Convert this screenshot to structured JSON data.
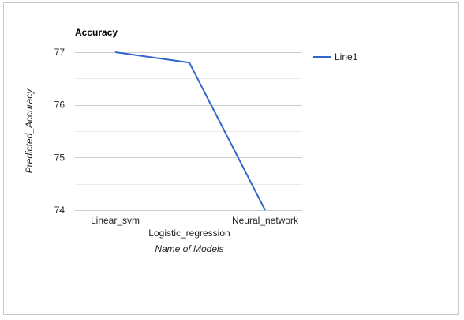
{
  "chart_data": {
    "type": "line",
    "title": "Accuracy",
    "xlabel": "Name of Models",
    "ylabel": "Predicted_Accuracy",
    "categories": [
      "Linear_svm",
      "Logistic_regression",
      "Neural_network"
    ],
    "series": [
      {
        "name": "Line1",
        "values": [
          77,
          76.8,
          74
        ],
        "color": "#3366cc"
      }
    ],
    "ylim": [
      74,
      77
    ],
    "yticks": [
      74,
      75,
      76,
      77
    ],
    "grid": true,
    "legend": "right"
  }
}
